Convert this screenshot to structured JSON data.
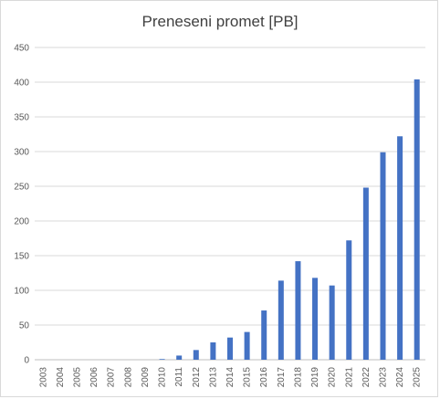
{
  "chart_data": {
    "type": "bar",
    "title": "Preneseni promet [PB]",
    "xlabel": "",
    "ylabel": "",
    "ylim": [
      0,
      450
    ],
    "yticks": [
      0,
      50,
      100,
      150,
      200,
      250,
      300,
      350,
      400,
      450
    ],
    "grid": true,
    "legend": "none",
    "bar_color": "#4472c4",
    "categories": [
      "2003",
      "2004",
      "2005",
      "2006",
      "2007",
      "2008",
      "2009",
      "2010",
      "2011",
      "2012",
      "2013",
      "2014",
      "2015",
      "2016",
      "2017",
      "2018",
      "2019",
      "2020",
      "2021",
      "2022",
      "2023",
      "2024",
      "2025"
    ],
    "values": [
      0,
      0,
      0,
      0,
      0,
      0,
      0,
      1,
      6,
      14,
      25,
      32,
      40,
      71,
      114,
      142,
      118,
      107,
      172,
      248,
      299,
      322,
      404
    ]
  }
}
